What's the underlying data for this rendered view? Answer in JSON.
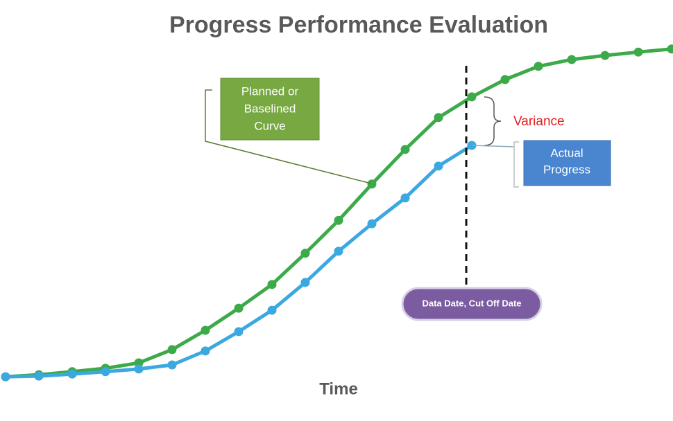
{
  "chart_data": {
    "type": "line",
    "title": "Progress Performance Evaluation",
    "x_label": "Time",
    "x": [
      0,
      1,
      2,
      3,
      4,
      5,
      6,
      7,
      8,
      9,
      10,
      11,
      12,
      13,
      14,
      15,
      16,
      17,
      18,
      19,
      20
    ],
    "xlim": [
      0,
      20
    ],
    "ylim": [
      0,
      100
    ],
    "series": [
      {
        "name": "Planned or Baselined Curve",
        "color": "#3daa4a",
        "values": [
          1.2,
          1.8,
          2.7,
          3.7,
          5.3,
          9.2,
          14.9,
          21.4,
          28.4,
          37.6,
          47.3,
          58.0,
          68.2,
          77.6,
          83.7,
          88.8,
          92.7,
          94.7,
          95.9,
          96.9,
          97.8
        ]
      },
      {
        "name": "Actual Progress",
        "color": "#3ba8e0",
        "values": [
          1.2,
          1.4,
          2.0,
          2.7,
          3.5,
          4.7,
          8.8,
          14.5,
          20.8,
          29.0,
          38.2,
          46.3,
          53.9,
          63.3,
          69.4,
          null,
          null,
          null,
          null,
          null,
          null
        ]
      }
    ],
    "annotations": {
      "planned_lines": [
        "Planned or",
        "Baselined",
        "Curve"
      ],
      "actual_lines": [
        "Actual",
        "Progress"
      ],
      "variance": "Variance",
      "data_date": "Data Date, Cut Off Date"
    }
  }
}
